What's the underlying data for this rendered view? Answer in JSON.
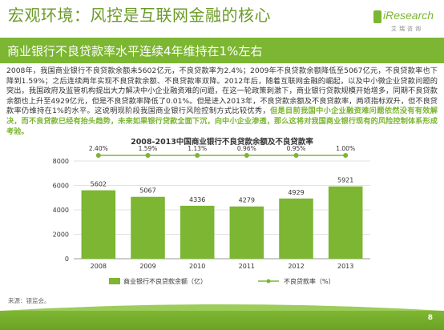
{
  "header": {
    "title": "宏观环境：风控是互联网金融的核心",
    "subtitle": "商业银行不良贷款率水平连续4年维持在1%左右",
    "logo_word": "iResearch",
    "logo_sub": "艾瑞咨询"
  },
  "body": {
    "plain": "2008年，我国商业银行不良贷款余额未5602亿元，不良贷款率为2.4%；2009年不良贷款余额降低至5067亿元，不良贷款率也下降到1.59%；之后连续两年实现不良贷款余额、不良贷款率双降。2012年后，随着互联网金融的崛起，以及中小微企业贷款问题的突出，我国政府及监管机构提出大力解决中小企业融资难的问题，在这一轮政策刺激下，商业银行贷款规模开始增多，同期不良贷款余额也上升至4929亿元，但是不良贷款率降低了0.01%。但是进入2013年，不良贷款余额及不良贷款率，两项指标双升，但不良贷款率仍维持在1%的水平。这说明现阶段我国商业银行风险控制方式比较优秀，",
    "highlight": "但是目前我国中小企业融资难问题依然没有有效解决，而不良贷款已经有抬头趋势，未来如果银行贷款全面下沉，向中小企业渗透，那么这将对我国商业银行现有的风险控制体系形成考验。"
  },
  "chart_data": {
    "type": "bar",
    "title": "2008-2013中国商业银行不良贷款余额及不良贷款率",
    "categories": [
      "2008",
      "2009",
      "2010",
      "2011",
      "2012",
      "2013"
    ],
    "series": [
      {
        "name": "商业银行不良贷款余额（亿）",
        "kind": "bar",
        "values": [
          5602,
          5067,
          4336,
          4279,
          4929,
          5921
        ],
        "color": "#7cb632"
      },
      {
        "name": "不良贷款率（%）",
        "kind": "line",
        "values": [
          2.4,
          1.59,
          1.13,
          0.96,
          0.95,
          1.0
        ],
        "labels": [
          "2.40%",
          "1.59%",
          "1.13%",
          "0.96%",
          "0.95%",
          "1.00%"
        ],
        "color": "#7cb632"
      }
    ],
    "bar_labels": [
      "5602",
      "5067",
      "4336",
      "4279",
      "4929",
      "5921"
    ],
    "ylim": [
      0,
      8000
    ],
    "yticks": [
      "0",
      "2000",
      "4000",
      "6000",
      "8000"
    ],
    "grid": true,
    "legend_position": "bottom"
  },
  "footer": {
    "source": "来源：银监会。",
    "page_number": "8"
  }
}
